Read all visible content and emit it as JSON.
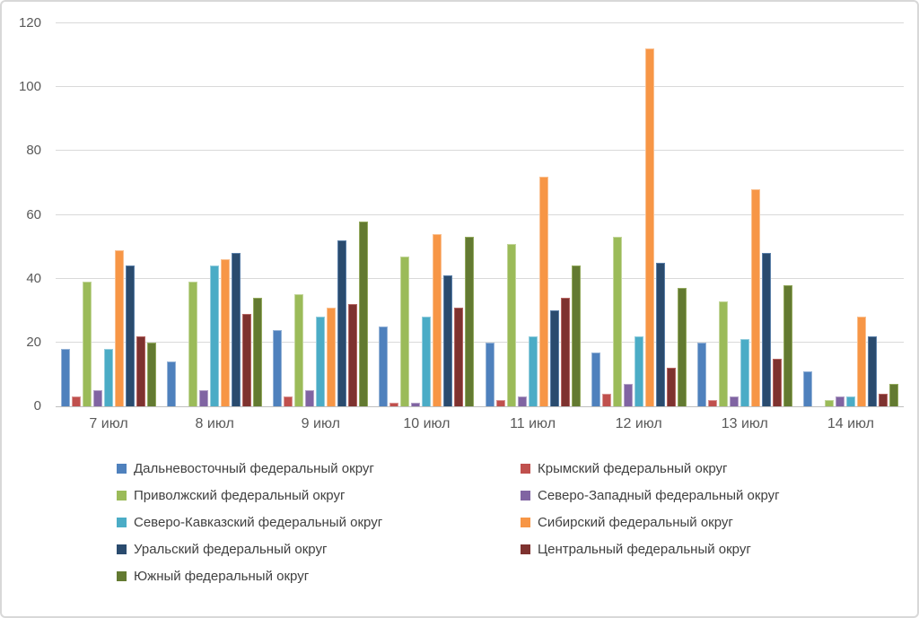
{
  "figure": {
    "background": "#ffffff",
    "border_color": "#d8d8d8",
    "gridline_color": "#d9d9d9",
    "axis_line_color": "#bfbfbf",
    "axis_text_color": "#595959",
    "legend_text_color": "#404040"
  },
  "chart_data": {
    "type": "bar",
    "title": "",
    "xlabel": "",
    "ylabel": "",
    "grid": true,
    "legend_position": "bottom",
    "categories": [
      "7 июл",
      "8 июл",
      "9 июл",
      "10 июл",
      "11 июл",
      "12 июл",
      "13 июл",
      "14 июл"
    ],
    "y_axis": {
      "min": 0,
      "max": 120,
      "step": 20,
      "tick_labels": [
        "0",
        "20",
        "40",
        "60",
        "80",
        "100",
        "120"
      ]
    },
    "series": [
      {
        "name": "Дальневосточный федеральный округ",
        "color": "#4F81BD",
        "border_color": "#95B3D7",
        "values": [
          18,
          14,
          24,
          25,
          20,
          17,
          20,
          11
        ]
      },
      {
        "name": "Крымский федеральный округ",
        "color": "#C0504D",
        "border_color": "#D99694",
        "values": [
          3,
          0,
          3,
          1,
          2,
          4,
          2,
          0
        ]
      },
      {
        "name": "Приволжский федеральный округ",
        "color": "#9BBB59",
        "border_color": "#C3D69B",
        "values": [
          39,
          39,
          35,
          47,
          51,
          53,
          33,
          2
        ]
      },
      {
        "name": "Северо-Западный федеральный округ",
        "color": "#8064A2",
        "border_color": "#B3A2C7",
        "values": [
          5,
          5,
          5,
          1,
          3,
          7,
          3,
          3
        ]
      },
      {
        "name": "Северо-Кавказский федеральный округ",
        "color": "#4BACC6",
        "border_color": "#93CDDD",
        "values": [
          18,
          44,
          28,
          28,
          22,
          22,
          21,
          3
        ]
      },
      {
        "name": "Сибирский федеральный округ",
        "color": "#F79646",
        "border_color": "#FAC090",
        "values": [
          49,
          46,
          31,
          54,
          72,
          112,
          68,
          28
        ]
      },
      {
        "name": "Уральский федеральный округ",
        "color": "#2A4B6E",
        "border_color": "#5A7FA8",
        "values": [
          44,
          48,
          52,
          41,
          30,
          45,
          48,
          22
        ]
      },
      {
        "name": "Центральный федеральный округ",
        "color": "#7E322F",
        "border_color": "#B56562",
        "values": [
          22,
          29,
          32,
          31,
          34,
          12,
          15,
          4
        ]
      },
      {
        "name": "Южный федеральный округ",
        "color": "#637A31",
        "border_color": "#93A95E",
        "values": [
          20,
          34,
          58,
          53,
          44,
          37,
          38,
          7
        ]
      }
    ],
    "legend_columns": [
      [
        0,
        2,
        4,
        6,
        8
      ],
      [
        1,
        3,
        5,
        7
      ]
    ]
  }
}
